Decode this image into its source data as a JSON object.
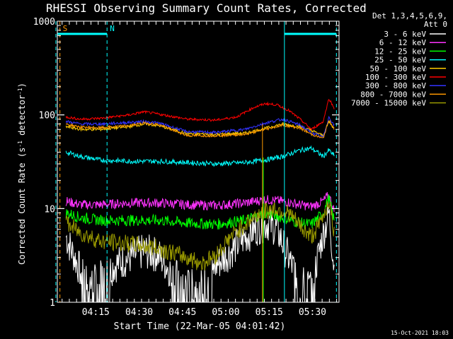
{
  "chart_data": {
    "type": "line",
    "title": "RHESSI Observing Summary Count Rates, Corrected",
    "xlabel": "Start Time (22-Mar-05 04:01:42)",
    "ylabel_main": "Corrected Count Rate (s",
    "ylabel_sup1": "-1",
    "ylabel_mid": " detector",
    "ylabel_sup2": "-1",
    "ylabel_end": ")",
    "yscale": "log",
    "ylim": [
      1,
      1000
    ],
    "xlim_minutes": [
      0,
      97.5
    ],
    "x_ticks": [
      {
        "label": "04:15",
        "minutes": 13.3
      },
      {
        "label": "04:30",
        "minutes": 28.3
      },
      {
        "label": "04:45",
        "minutes": 43.3
      },
      {
        "label": "05:00",
        "minutes": 58.3
      },
      {
        "label": "05:15",
        "minutes": 73.3
      },
      {
        "label": "05:30",
        "minutes": 88.3
      }
    ],
    "y_ticks": [
      {
        "label": "1",
        "value": 1
      },
      {
        "label": "10",
        "value": 10
      },
      {
        "label": "100",
        "value": 100
      },
      {
        "label": "1000",
        "value": 1000
      }
    ],
    "legend": {
      "header1": "Det 1,3,4,5,6,9,",
      "header2": "Att 0",
      "placement": "right"
    },
    "series": [
      {
        "name": "3 - 6 keV",
        "color": "#ffffff",
        "x": [
          3,
          6,
          9,
          12,
          15,
          20,
          25,
          30,
          35,
          40,
          45,
          50,
          55,
          60,
          65,
          70,
          73,
          76,
          80,
          84,
          88,
          91,
          94,
          96
        ],
        "y": [
          5,
          3,
          1.8,
          1.6,
          1.8,
          2.5,
          3,
          3.5,
          3.2,
          2,
          1.5,
          1.4,
          2.5,
          3.5,
          5,
          6.5,
          7,
          6,
          3,
          1.6,
          1.5,
          4,
          9,
          2
        ]
      },
      {
        "name": "6 - 12 keV",
        "color": "#ff33ff",
        "x": [
          3,
          8,
          15,
          25,
          35,
          45,
          55,
          65,
          72,
          78,
          84,
          88,
          92,
          94,
          96
        ],
        "y": [
          12,
          11,
          11,
          11.5,
          11.5,
          11,
          10.8,
          11.5,
          12.5,
          12,
          11,
          10.5,
          12,
          14,
          9
        ]
      },
      {
        "name": "12 - 25 keV",
        "color": "#00ff00",
        "x": [
          3,
          8,
          15,
          25,
          35,
          45,
          55,
          65,
          72,
          78,
          84,
          88,
          92,
          94,
          96
        ],
        "y": [
          9,
          8,
          7.5,
          7.5,
          7.5,
          7,
          6.8,
          7.5,
          9,
          8,
          7,
          6.8,
          9,
          13,
          7
        ]
      },
      {
        "name": "25 - 50 keV",
        "color": "#00ffff",
        "x": [
          3,
          8,
          15,
          25,
          35,
          45,
          55,
          65,
          72,
          78,
          84,
          88,
          92,
          94,
          96
        ],
        "y": [
          40,
          36,
          33,
          32,
          32,
          31,
          30,
          31,
          33,
          36,
          42,
          44,
          36,
          42,
          36
        ]
      },
      {
        "name": "50 - 100 keV",
        "color": "#ffcc00",
        "x": [
          3,
          8,
          15,
          25,
          30,
          35,
          45,
          55,
          65,
          72,
          78,
          84,
          88,
          92,
          94,
          96
        ],
        "y": [
          75,
          70,
          70,
          75,
          80,
          77,
          63,
          62,
          64,
          72,
          80,
          75,
          68,
          60,
          85,
          70
        ]
      },
      {
        "name": "100 - 300 keV",
        "color": "#ff0000",
        "x": [
          3,
          8,
          15,
          25,
          30,
          35,
          45,
          55,
          62,
          68,
          72,
          76,
          80,
          84,
          88,
          92,
          94,
          96
        ],
        "y": [
          95,
          90,
          92,
          100,
          108,
          102,
          90,
          88,
          95,
          120,
          132,
          128,
          112,
          90,
          70,
          85,
          150,
          115
        ]
      },
      {
        "name": "300 - 800 keV",
        "color": "#3333ff",
        "x": [
          3,
          8,
          15,
          25,
          30,
          35,
          45,
          55,
          65,
          72,
          78,
          84,
          88,
          92,
          94,
          96
        ],
        "y": [
          85,
          80,
          80,
          83,
          85,
          82,
          66,
          65,
          70,
          82,
          90,
          78,
          64,
          58,
          95,
          75
        ]
      },
      {
        "name": "800 - 7000 keV",
        "color": "#ff9900",
        "x": [
          3,
          8,
          15,
          25,
          30,
          35,
          45,
          55,
          65,
          72,
          78,
          84,
          88,
          92,
          94,
          96
        ],
        "y": [
          80,
          74,
          73,
          77,
          82,
          79,
          60,
          60,
          62,
          70,
          78,
          72,
          62,
          56,
          88,
          70
        ]
      },
      {
        "name": "7000 - 15000 keV",
        "color": "#999900",
        "x": [
          3,
          8,
          15,
          25,
          30,
          35,
          45,
          50,
          55,
          60,
          65,
          70,
          75,
          80,
          85,
          88,
          91,
          94,
          96
        ],
        "y": [
          7,
          5.5,
          4.5,
          4.2,
          4,
          3.8,
          3,
          2.6,
          3.2,
          5,
          6.8,
          9,
          10,
          9,
          6,
          5,
          7,
          12,
          5
        ]
      }
    ],
    "markers": [
      {
        "label": "S",
        "color": "#ff9900",
        "minutes": 0.9
      },
      {
        "label": "N",
        "color": "#00ffff",
        "minutes": 17.2
      }
    ],
    "night_bars": [
      {
        "color": "#00ffff",
        "from": 0,
        "to": 17.2
      },
      {
        "color": "#00ffff",
        "from": 78.6,
        "to": 96.6
      }
    ],
    "cyan_dashed_lines_minutes": [
      -0.5,
      17.2,
      96.6
    ],
    "cyan_solid_lines_minutes": [
      78.6
    ],
    "timestamp": "15-Oct-2021 18:03"
  }
}
